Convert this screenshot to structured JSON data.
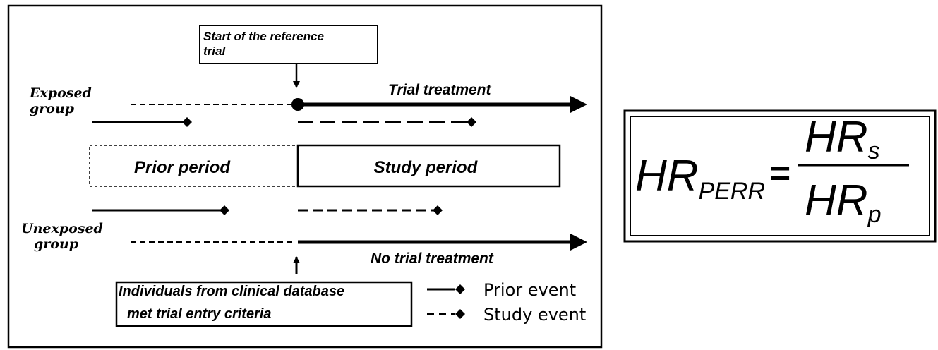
{
  "start_label": [
    "Start of the reference",
    "trial"
  ],
  "exposed_label": [
    "Exposed",
    "group"
  ],
  "unexposed_label": [
    "Unexposed",
    "group"
  ],
  "trial_treatment": "Trial treatment",
  "no_trial_treatment": "No trial treatment",
  "prior_period": "Prior period",
  "study_period": "Study period",
  "entry_label": [
    "Individuals from clinical database",
    "met trial entry criteria"
  ],
  "legend": {
    "prior_event": "Prior event",
    "study_event": "Study event"
  },
  "formula": {
    "lhs": {
      "base": "HR",
      "sub": "PERR"
    },
    "equals": "=",
    "numerator": {
      "base": "HR",
      "sub": "s"
    },
    "denominator": {
      "base": "HR",
      "sub": "p"
    }
  }
}
